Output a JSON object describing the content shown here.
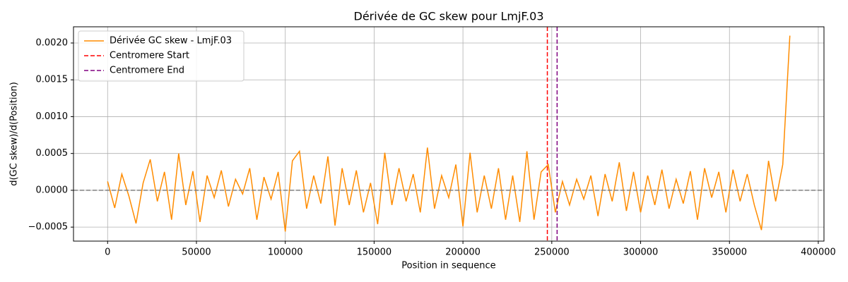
{
  "chart_data": {
    "type": "line",
    "title": "Dérivée de GC skew pour LmjF.03",
    "x_label": "Position in sequence",
    "y_label": "d(GC skew)/d(Position)",
    "x": [
      0,
      4000,
      8000,
      12000,
      16000,
      20000,
      24000,
      28000,
      32000,
      36000,
      40000,
      44000,
      48000,
      52000,
      56000,
      60000,
      64000,
      68000,
      72000,
      76000,
      80000,
      84000,
      88000,
      92000,
      96000,
      100000,
      104000,
      108000,
      112000,
      116000,
      120000,
      124000,
      128000,
      132000,
      136000,
      140000,
      144000,
      148000,
      152000,
      156000,
      160000,
      164000,
      168000,
      172000,
      176000,
      180000,
      184000,
      188000,
      192000,
      196000,
      200000,
      204000,
      208000,
      212000,
      216000,
      220000,
      224000,
      228000,
      232000,
      236000,
      240000,
      244000,
      248000,
      252000,
      256000,
      260000,
      264000,
      268000,
      272000,
      276000,
      280000,
      284000,
      288000,
      292000,
      296000,
      300000,
      304000,
      308000,
      312000,
      316000,
      320000,
      324000,
      328000,
      332000,
      336000,
      340000,
      344000,
      348000,
      352000,
      356000,
      360000,
      364000,
      368000,
      372000,
      376000,
      380000,
      384000
    ],
    "series": [
      {
        "name": "Dérivée GC skew - LmjF.03",
        "color": "#ff8c00",
        "values": [
          0.00012,
          -0.00024,
          0.00022,
          -8e-05,
          -0.00045,
          0.0001,
          0.00042,
          -0.00015,
          0.00025,
          -0.0004,
          0.0005,
          -0.0002,
          0.00026,
          -0.00043,
          0.0002,
          -0.0001,
          0.00027,
          -0.00022,
          0.00015,
          -5e-05,
          0.0003,
          -0.0004,
          0.00018,
          -0.00012,
          0.00025,
          -0.00056,
          0.0004,
          0.00053,
          -0.00025,
          0.0002,
          -0.00018,
          0.00046,
          -0.00048,
          0.0003,
          -0.0002,
          0.00027,
          -0.0003,
          0.0001,
          -0.00046,
          0.00051,
          -0.0002,
          0.0003,
          -0.00015,
          0.00022,
          -0.0003,
          0.00058,
          -0.00025,
          0.0002,
          -0.0001,
          0.00035,
          -0.00049,
          0.00051,
          -0.0003,
          0.0002,
          -0.00025,
          0.0003,
          -0.0004,
          0.0002,
          -0.00043,
          0.00053,
          -0.0004,
          0.00025,
          0.00035,
          -0.0003,
          0.00012,
          -0.0002,
          0.00015,
          -0.00012,
          0.0002,
          -0.00035,
          0.00022,
          -0.00015,
          0.00038,
          -0.00028,
          0.00025,
          -0.0003,
          0.0002,
          -0.0002,
          0.00028,
          -0.00025,
          0.00015,
          -0.00018,
          0.00026,
          -0.0004,
          0.0003,
          -0.0001,
          0.00025,
          -0.0003,
          0.00028,
          -0.00015,
          0.00022,
          -0.0002,
          -0.00054,
          0.0004,
          -0.00015,
          0.00035,
          0.0021
        ]
      }
    ],
    "vlines": [
      {
        "name": "Centromere Start",
        "x": 247500,
        "color": "#ff0000"
      },
      {
        "name": "Centromere End",
        "x": 253000,
        "color": "#800080"
      }
    ],
    "hline": {
      "y": 0,
      "color": "#808080"
    },
    "xlim": [
      -19200,
      403200
    ],
    "ylim": [
      -0.00069,
      0.00222
    ],
    "xticks": [
      0,
      50000,
      100000,
      150000,
      200000,
      250000,
      300000,
      350000,
      400000
    ],
    "yticks": [
      {
        "value": -0.0005,
        "label": "−0.0005"
      },
      {
        "value": 0,
        "label": "0.0000"
      },
      {
        "value": 0.0005,
        "label": "0.0005"
      },
      {
        "value": 0.001,
        "label": "0.0010"
      },
      {
        "value": 0.0015,
        "label": "0.0015"
      },
      {
        "value": 0.002,
        "label": "0.0020"
      }
    ],
    "grid": true,
    "legend": "upper-left"
  }
}
